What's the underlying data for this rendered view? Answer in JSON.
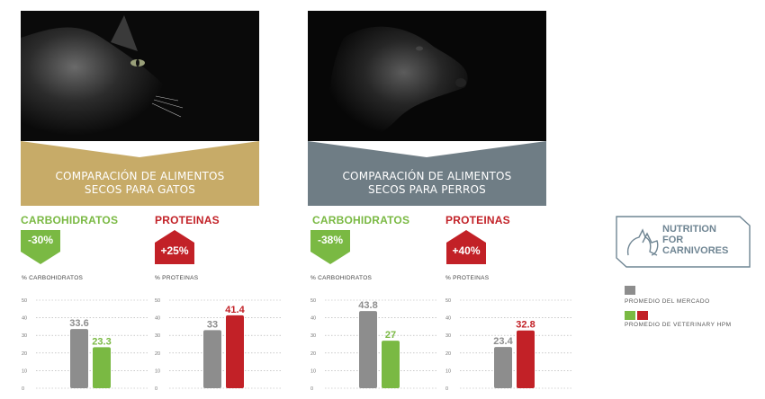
{
  "colors": {
    "gray": "#8d8d8d",
    "green": "#7ab943",
    "red": "#c22127",
    "gold": "#c7ab68",
    "slate": "#6f7d85"
  },
  "panels": [
    {
      "animal_icon": "cat-photo",
      "banner_line1": "COMPARACIÓN DE ALIMENTOS",
      "banner_line2": "SECOS PARA GATOS",
      "carb_title": "CARBOHIDRATOS",
      "carb_badge": "-30%",
      "prot_title": "PROTEINAS",
      "prot_badge": "+25%"
    },
    {
      "animal_icon": "dog-photo",
      "banner_line1": "COMPARACIÓN DE ALIMENTOS",
      "banner_line2": "SECOS PARA PERROS",
      "carb_title": "CARBOHIDRATOS",
      "carb_badge": "-38%",
      "prot_title": "PROTEINAS",
      "prot_badge": "+40%"
    }
  ],
  "chart_data": [
    {
      "type": "bar",
      "ylabel": "% CARBOHIDRATOS",
      "ylim": [
        0,
        50
      ],
      "yticks": [
        0,
        10,
        20,
        30,
        40,
        50
      ],
      "grid": true,
      "categories": [
        "PROMEDIO DEL MERCADO",
        "PROMEDIO DE VETERINARY HPM"
      ],
      "values": [
        33.6,
        23.3
      ],
      "bar_colors": [
        "gray",
        "green"
      ],
      "labels": [
        "33.6",
        "23.3"
      ]
    },
    {
      "type": "bar",
      "ylabel": "% PROTEINAS",
      "ylim": [
        0,
        50
      ],
      "yticks": [
        0,
        10,
        20,
        30,
        40,
        50
      ],
      "grid": true,
      "categories": [
        "PROMEDIO DEL MERCADO",
        "PROMEDIO DE VETERINARY HPM"
      ],
      "values": [
        33,
        41.4
      ],
      "bar_colors": [
        "gray",
        "red"
      ],
      "labels": [
        "33",
        "41.4"
      ]
    },
    {
      "type": "bar",
      "ylabel": "% CARBOHIDRATOS",
      "ylim": [
        0,
        50
      ],
      "yticks": [
        0,
        10,
        20,
        30,
        40,
        50
      ],
      "grid": true,
      "categories": [
        "PROMEDIO DEL MERCADO",
        "PROMEDIO DE VETERINARY HPM"
      ],
      "values": [
        43.8,
        27
      ],
      "bar_colors": [
        "gray",
        "green"
      ],
      "labels": [
        "43.8",
        "27"
      ]
    },
    {
      "type": "bar",
      "ylabel": "% PROTEINAS",
      "ylim": [
        0,
        50
      ],
      "yticks": [
        0,
        10,
        20,
        30,
        40,
        50
      ],
      "grid": true,
      "categories": [
        "PROMEDIO DEL MERCADO",
        "PROMEDIO DE VETERINARY HPM"
      ],
      "values": [
        23.4,
        32.8
      ],
      "bar_colors": [
        "gray",
        "red"
      ],
      "labels": [
        "23.4",
        "32.8"
      ]
    }
  ],
  "logo": {
    "line1": "NUTRITION",
    "line2": "FOR",
    "line3": "CARNIVORES",
    "icon": "cat-dog-logo-icon"
  },
  "legend": {
    "market": "PROMEDIO DEL MERCADO",
    "vet": "PROMEDIO DE VETERINARY HPM"
  }
}
